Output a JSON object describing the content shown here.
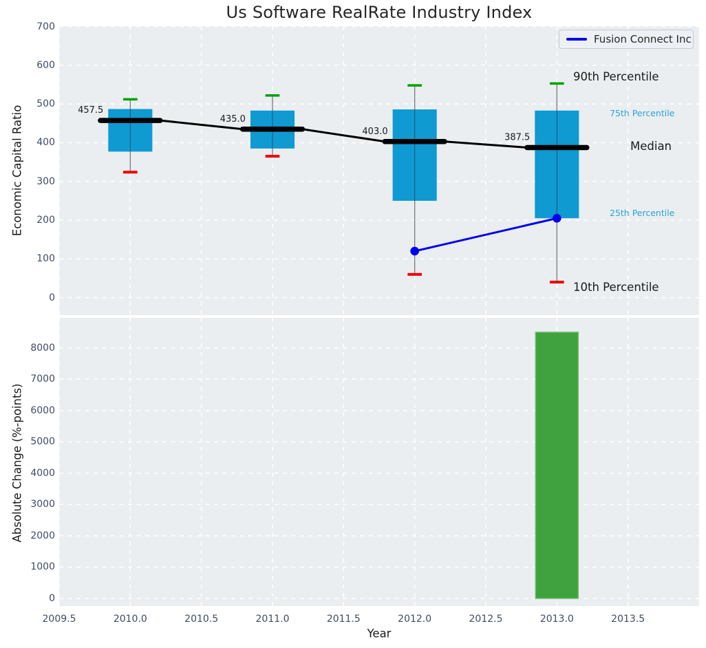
{
  "figure": {
    "background": "#ffffff",
    "plot_background": "#eaeef1",
    "grid_color": "#ffffff",
    "tick_color": "#3d4c63"
  },
  "palette": {
    "box_fill": "#0f9ad2",
    "whisker": "#7a7a7a",
    "cap_high": "#00a000",
    "cap_low": "#ee0000",
    "median_line": "#000000",
    "series_line": "#0000ee",
    "bar_fill": "#3fa23f",
    "bar_edge": "#6fbc6f",
    "annotation_dark": "#1a1a1a",
    "annotation_cyan": "#29a2d4"
  },
  "chart_data": [
    {
      "type": "boxplot-timeseries",
      "title": "Us Software RealRate Industry Index",
      "ylabel": "Economic Capital Ratio",
      "xlim": [
        2009.5,
        2014.0
      ],
      "ylim": [
        -45,
        701
      ],
      "grid": "on-white-dashed",
      "yticks": [
        "0",
        "100",
        "200",
        "300",
        "400",
        "500",
        "600",
        "700"
      ],
      "ytick_values": [
        0,
        100,
        200,
        300,
        400,
        500,
        600,
        700
      ],
      "xtick_values": [
        2009.5,
        2010.0,
        2010.5,
        2011.0,
        2011.5,
        2012.0,
        2012.5,
        2013.0,
        2013.5
      ],
      "box_half_width": 0.155,
      "cap_half_width": 0.05,
      "median_seg_half_width": 0.21,
      "boxes": [
        {
          "year": 2010,
          "p90": 512,
          "p75": 487,
          "median": 457.5,
          "p25": 377,
          "p10": 324,
          "median_label": "457.5"
        },
        {
          "year": 2011,
          "p90": 522,
          "p75": 483,
          "median": 435.0,
          "p25": 385,
          "p10": 365,
          "median_label": "435.0"
        },
        {
          "year": 2012,
          "p90": 548,
          "p75": 486,
          "median": 403.0,
          "p25": 250,
          "p10": 60,
          "median_label": "403.0"
        },
        {
          "year": 2013,
          "p90": 553,
          "p75": 483,
          "median": 387.5,
          "p25": 205,
          "p10": 40,
          "median_label": "387.5"
        }
      ],
      "series": [
        {
          "name": "Fusion Connect Inc",
          "x": [
            2012,
            2013
          ],
          "y": [
            120,
            205
          ]
        }
      ],
      "legend": {
        "label": "Fusion Connect Inc",
        "position": "upper right"
      },
      "annotations": [
        {
          "text": "90th Percentile",
          "style": "big"
        },
        {
          "text": "75th Percentile",
          "style": "cyan"
        },
        {
          "text": "Median",
          "style": "big"
        },
        {
          "text": "25th Percentile",
          "style": "cyan"
        },
        {
          "text": "10th Percentile",
          "style": "big"
        }
      ]
    },
    {
      "type": "bar",
      "ylabel": "Absolute Change (%-points)",
      "xlabel": "Year",
      "xlim": [
        2009.5,
        2014.0
      ],
      "ylim": [
        -242,
        8960
      ],
      "grid": "on-white-dashed",
      "yticks": [
        "0",
        "1000",
        "2000",
        "3000",
        "4000",
        "5000",
        "6000",
        "7000",
        "8000"
      ],
      "ytick_values": [
        0,
        1000,
        2000,
        3000,
        4000,
        5000,
        6000,
        7000,
        8000
      ],
      "xticks": [
        "2009.5",
        "2010.0",
        "2010.5",
        "2011.0",
        "2011.5",
        "2012.0",
        "2012.5",
        "2013.0",
        "2013.5"
      ],
      "xtick_values": [
        2009.5,
        2010.0,
        2010.5,
        2011.0,
        2011.5,
        2012.0,
        2012.5,
        2013.0,
        2013.5
      ],
      "bar_width": 0.3,
      "bars": [
        {
          "x": 2013,
          "value": 8500
        }
      ]
    }
  ]
}
